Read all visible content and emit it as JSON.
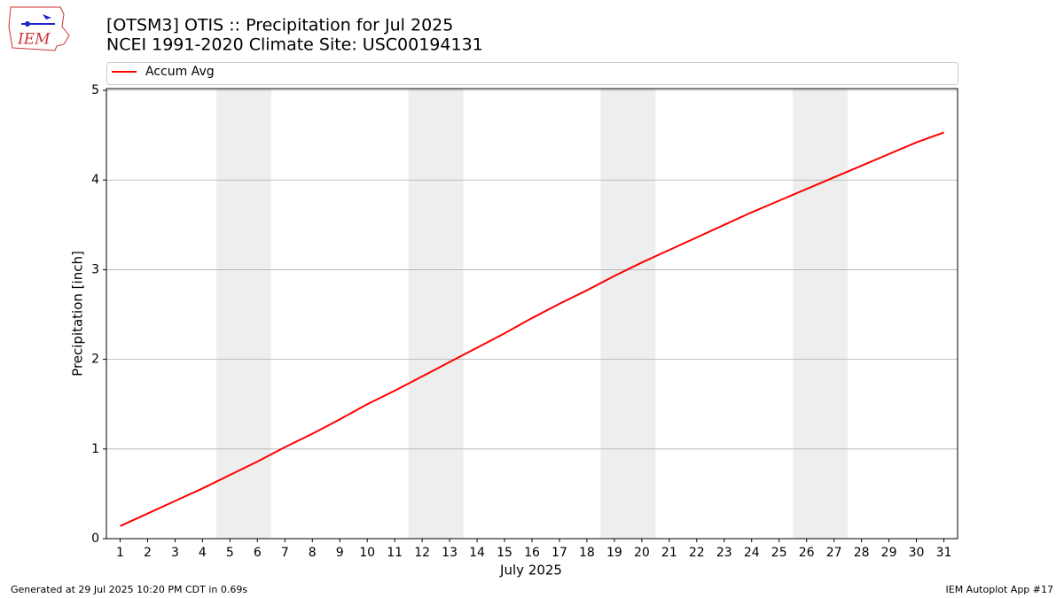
{
  "logo_text": "IEM",
  "footer": {
    "left": "Generated at 29 Jul 2025 10:20 PM CDT in 0.69s",
    "right": "IEM Autoplot App #17"
  },
  "chart_data": {
    "type": "line",
    "title": "[OTSM3] OTIS :: Precipitation for Jul 2025",
    "subtitle": "NCEI 1991-2020 Climate Site: USC00194131",
    "x_label": "July 2025",
    "y_label": "Precipitation [inch]",
    "x": [
      1,
      2,
      3,
      4,
      5,
      6,
      7,
      8,
      9,
      10,
      11,
      12,
      13,
      14,
      15,
      16,
      17,
      18,
      19,
      20,
      21,
      22,
      23,
      24,
      25,
      26,
      27,
      28,
      29,
      30,
      31
    ],
    "series": [
      {
        "name": "Accum Avg",
        "color": "#ff0000",
        "values": [
          0.14,
          0.28,
          0.42,
          0.56,
          0.71,
          0.86,
          1.02,
          1.17,
          1.33,
          1.5,
          1.65,
          1.81,
          1.97,
          2.13,
          2.29,
          2.46,
          2.62,
          2.77,
          2.93,
          3.08,
          3.22,
          3.36,
          3.5,
          3.64,
          3.77,
          3.9,
          4.03,
          4.16,
          4.29,
          4.42,
          4.53
        ]
      }
    ],
    "shaded_ranges": [
      [
        4.5,
        6.5
      ],
      [
        11.5,
        13.5
      ],
      [
        18.5,
        20.5
      ],
      [
        25.5,
        27.5
      ]
    ],
    "shade_color": "#eeeeee",
    "xlim": [
      0.5,
      31.5
    ],
    "ylim": [
      0,
      5.02
    ],
    "xticks": [
      1,
      2,
      3,
      4,
      5,
      6,
      7,
      8,
      9,
      10,
      11,
      12,
      13,
      14,
      15,
      16,
      17,
      18,
      19,
      20,
      21,
      22,
      23,
      24,
      25,
      26,
      27,
      28,
      29,
      30,
      31
    ],
    "yticks": [
      0,
      1,
      2,
      3,
      4,
      5
    ],
    "grid": "y",
    "legend": "top"
  }
}
